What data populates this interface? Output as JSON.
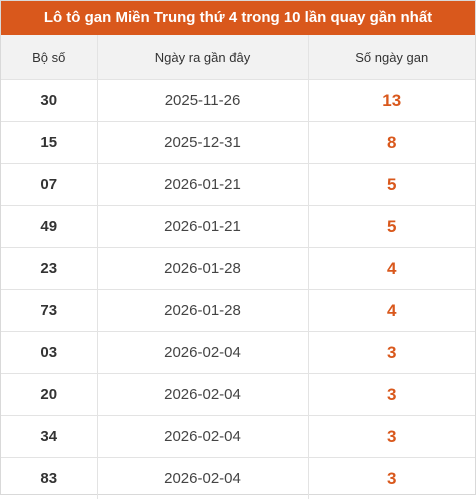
{
  "title": "Lô tô gan Miền Trung thứ 4 trong 10 lần quay gần nhất",
  "colors": {
    "header_bg": "#d9581c",
    "accent": "#d9581c",
    "header_row_bg": "#f2f2f2"
  },
  "columns": [
    "Bộ số",
    "Ngày ra gần đây",
    "Số ngày gan"
  ],
  "rows": [
    {
      "number": "30",
      "date": "2025-11-26",
      "days": "13"
    },
    {
      "number": "15",
      "date": "2025-12-31",
      "days": "8"
    },
    {
      "number": "07",
      "date": "2026-01-21",
      "days": "5"
    },
    {
      "number": "49",
      "date": "2026-01-21",
      "days": "5"
    },
    {
      "number": "23",
      "date": "2026-01-28",
      "days": "4"
    },
    {
      "number": "73",
      "date": "2026-01-28",
      "days": "4"
    },
    {
      "number": "03",
      "date": "2026-02-04",
      "days": "3"
    },
    {
      "number": "20",
      "date": "2026-02-04",
      "days": "3"
    },
    {
      "number": "34",
      "date": "2026-02-04",
      "days": "3"
    },
    {
      "number": "83",
      "date": "2026-02-04",
      "days": "3"
    }
  ]
}
